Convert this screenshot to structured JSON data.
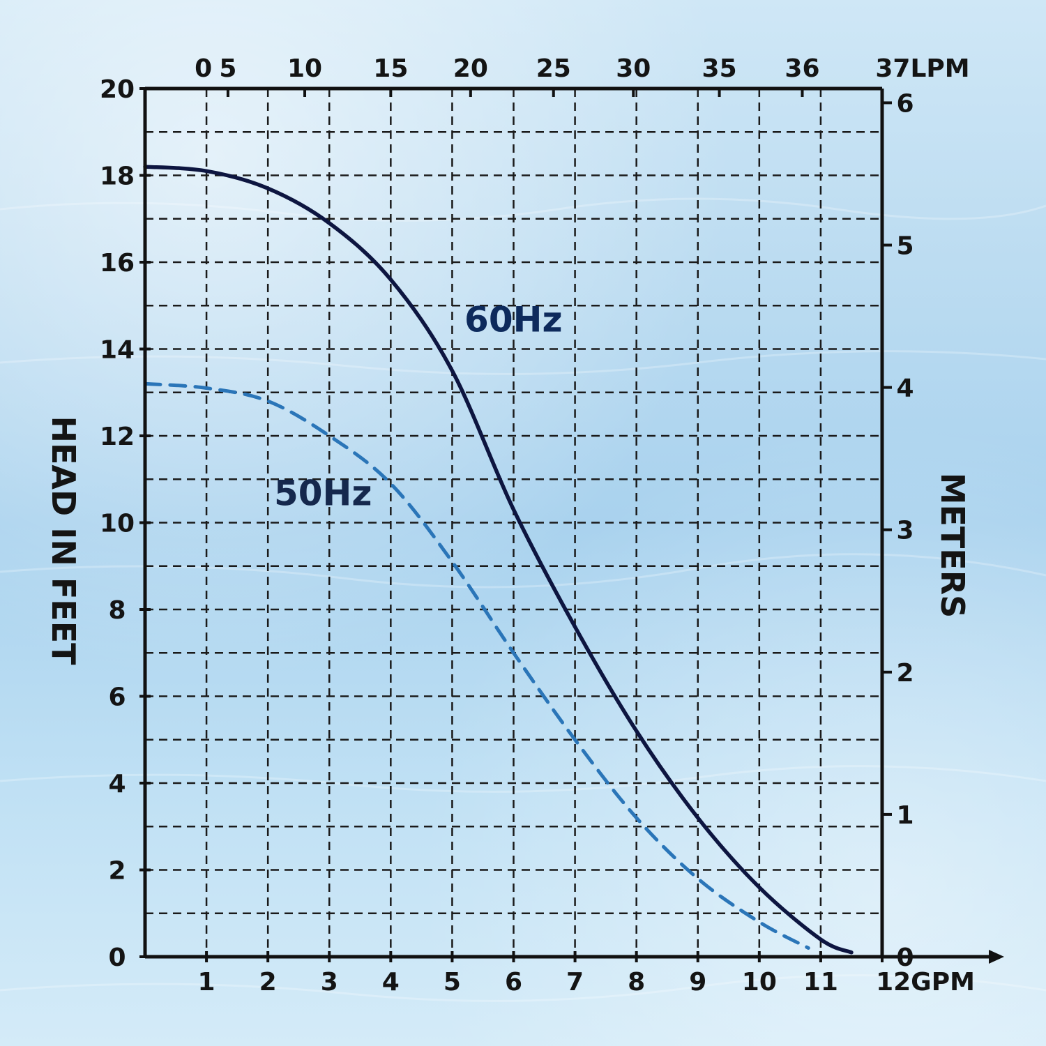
{
  "chart_data": {
    "type": "line",
    "x": {
      "label": "GPM",
      "range": [
        0,
        12
      ],
      "ticks": [
        1,
        2,
        3,
        4,
        5,
        6,
        7,
        8,
        9,
        10,
        11,
        12
      ],
      "tick_labels": [
        "1",
        "2",
        "3",
        "4",
        "5",
        "6",
        "7",
        "8",
        "9",
        "10",
        "11",
        "12GPM"
      ]
    },
    "x2": {
      "label": "LPM",
      "ticks": [
        {
          "gpm": 0.95,
          "label": "0"
        },
        {
          "gpm": 1.35,
          "label": "5"
        },
        {
          "gpm": 2.6,
          "label": "10"
        },
        {
          "gpm": 4.0,
          "label": "15"
        },
        {
          "gpm": 5.3,
          "label": "20"
        },
        {
          "gpm": 6.65,
          "label": "25"
        },
        {
          "gpm": 7.95,
          "label": "30"
        },
        {
          "gpm": 9.35,
          "label": "35"
        },
        {
          "gpm": 10.7,
          "label": "36"
        },
        {
          "gpm": 12.0,
          "label": "37LPM"
        }
      ]
    },
    "y": {
      "label": "HEAD IN FEET",
      "range": [
        0,
        20
      ],
      "ticks": [
        0,
        2,
        4,
        6,
        8,
        10,
        12,
        14,
        16,
        18,
        20
      ],
      "tick_labels": [
        "0",
        "2",
        "4",
        "6",
        "8",
        "10",
        "12",
        "14",
        "16",
        "18",
        "20"
      ]
    },
    "y2": {
      "label": "METERS",
      "range": [
        0,
        6.1
      ],
      "ticks": [
        0,
        1,
        2,
        3,
        4,
        5,
        6
      ],
      "tick_labels": [
        "0",
        "1",
        "2",
        "3",
        "4",
        "5",
        "6"
      ]
    },
    "grid": true,
    "grid_style": "dashed",
    "series": [
      {
        "name": "60Hz",
        "style": "solid",
        "color": "#0d1540",
        "points": [
          [
            0,
            18.2
          ],
          [
            1,
            18.1
          ],
          [
            2,
            17.7
          ],
          [
            3,
            16.9
          ],
          [
            4,
            15.6
          ],
          [
            5,
            13.5
          ],
          [
            6,
            10.3
          ],
          [
            7,
            7.6
          ],
          [
            8,
            5.2
          ],
          [
            9,
            3.2
          ],
          [
            10,
            1.6
          ],
          [
            11,
            0.4
          ],
          [
            11.5,
            0.1
          ]
        ]
      },
      {
        "name": "50Hz",
        "style": "dashed",
        "color": "#2a75b8",
        "points": [
          [
            0,
            13.2
          ],
          [
            1,
            13.1
          ],
          [
            2,
            12.8
          ],
          [
            3,
            12.0
          ],
          [
            4,
            10.9
          ],
          [
            5,
            9.1
          ],
          [
            6,
            7.0
          ],
          [
            7,
            5.0
          ],
          [
            8,
            3.2
          ],
          [
            9,
            1.8
          ],
          [
            10,
            0.8
          ],
          [
            10.8,
            0.2
          ]
        ]
      }
    ],
    "annotations": [
      {
        "text": "60Hz",
        "x": 5.2,
        "y": 14.4
      },
      {
        "text": "50Hz",
        "x": 2.1,
        "y": 10.4
      }
    ]
  },
  "colors": {
    "axis": "#111111",
    "grid": "#1a1a1a",
    "line_60hz": "#0d1540",
    "line_50hz": "#2a75b8",
    "label_60hz": "#0d2a5c",
    "label_50hz": "#15284d"
  }
}
